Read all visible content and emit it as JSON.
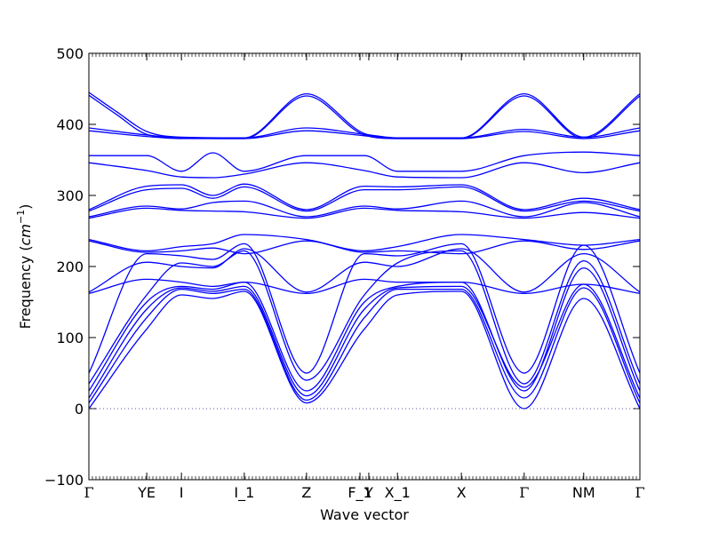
{
  "chart_data": {
    "type": "line",
    "title": "",
    "xlabel": "Wave vector",
    "ylabel_prefix": "Frequency (",
    "ylabel_unit_base": "cm",
    "ylabel_unit_exp": "−1",
    "ylabel_suffix": ")",
    "ylim": [
      -100,
      500
    ],
    "yticks": [
      -100,
      0,
      100,
      200,
      300,
      400,
      500
    ],
    "ytick_labels": [
      "−100",
      "0",
      "100",
      "200",
      "300",
      "400",
      "500"
    ],
    "grid": false,
    "band_color": "#0000ff",
    "zero_line_color": "#5555aa",
    "high_symmetry_points": [
      {
        "label": "Γ",
        "x": 0.0
      },
      {
        "label": "YE",
        "x": 0.105
      },
      {
        "label": "I",
        "x": 0.168
      },
      {
        "label": "I_1",
        "x": 0.282
      },
      {
        "label": "Z",
        "x": 0.395
      },
      {
        "label": "F_1",
        "x": 0.492
      },
      {
        "label": "Y",
        "x": 0.508
      },
      {
        "label": "X_1",
        "x": 0.56
      },
      {
        "label": "X",
        "x": 0.676
      },
      {
        "label": "Γ",
        "x": 0.79
      },
      {
        "label": "NM",
        "x": 0.898
      },
      {
        "label": "Γ",
        "x": 1.0
      }
    ],
    "series": [
      {
        "x": [
          0,
          0.05,
          0.105,
          0.168,
          0.282,
          0.395,
          0.5,
          0.56,
          0.676,
          0.79,
          0.898,
          1.0
        ],
        "values": [
          445,
          418,
          390,
          382,
          381,
          443,
          387,
          381,
          381,
          443,
          382,
          443
        ]
      },
      {
        "x": [
          0,
          0.05,
          0.105,
          0.168,
          0.282,
          0.395,
          0.5,
          0.56,
          0.676,
          0.79,
          0.898,
          1.0
        ],
        "values": [
          441,
          414,
          386,
          381,
          380,
          440,
          385,
          380,
          380,
          440,
          380,
          440
        ]
      },
      {
        "x": [
          0,
          0.105,
          0.168,
          0.225,
          0.282,
          0.395,
          0.5,
          0.56,
          0.676,
          0.79,
          0.898,
          1.0
        ],
        "values": [
          395,
          385,
          381,
          381,
          381,
          395,
          386,
          381,
          381,
          393,
          382,
          395
        ]
      },
      {
        "x": [
          0,
          0.105,
          0.168,
          0.225,
          0.282,
          0.395,
          0.5,
          0.56,
          0.676,
          0.79,
          0.898,
          1.0
        ],
        "values": [
          391,
          383,
          380,
          380,
          380,
          391,
          384,
          380,
          380,
          390,
          380,
          391
        ]
      },
      {
        "x": [
          0,
          0.105,
          0.168,
          0.225,
          0.282,
          0.395,
          0.5,
          0.56,
          0.676,
          0.79,
          0.898,
          1.0
        ],
        "values": [
          356,
          356,
          334,
          360,
          334,
          356,
          356,
          334,
          334,
          356,
          361,
          356
        ]
      },
      {
        "x": [
          0,
          0.105,
          0.168,
          0.225,
          0.282,
          0.395,
          0.5,
          0.56,
          0.676,
          0.79,
          0.898,
          1.0
        ],
        "values": [
          346,
          335,
          326,
          325,
          330,
          346,
          335,
          326,
          325,
          346,
          332,
          346
        ]
      },
      {
        "x": [
          0,
          0.105,
          0.168,
          0.225,
          0.282,
          0.395,
          0.5,
          0.56,
          0.676,
          0.79,
          0.898,
          1.0
        ],
        "values": [
          280,
          313,
          315,
          300,
          316,
          280,
          313,
          312,
          315,
          280,
          296,
          280
        ]
      },
      {
        "x": [
          0,
          0.105,
          0.168,
          0.225,
          0.282,
          0.395,
          0.5,
          0.56,
          0.676,
          0.79,
          0.898,
          1.0
        ],
        "values": [
          278,
          308,
          310,
          296,
          312,
          278,
          308,
          308,
          312,
          278,
          292,
          278
        ]
      },
      {
        "x": [
          0,
          0.105,
          0.168,
          0.225,
          0.282,
          0.395,
          0.5,
          0.56,
          0.676,
          0.79,
          0.898,
          1.0
        ],
        "values": [
          270,
          285,
          281,
          290,
          292,
          270,
          285,
          281,
          292,
          270,
          290,
          270
        ]
      },
      {
        "x": [
          0,
          0.105,
          0.168,
          0.225,
          0.282,
          0.395,
          0.5,
          0.56,
          0.676,
          0.79,
          0.898,
          1.0
        ],
        "values": [
          268,
          282,
          279,
          278,
          277,
          268,
          282,
          279,
          277,
          268,
          276,
          268
        ]
      },
      {
        "x": [
          0,
          0.105,
          0.168,
          0.225,
          0.282,
          0.395,
          0.5,
          0.56,
          0.676,
          0.79,
          0.898,
          1.0
        ],
        "values": [
          238,
          222,
          228,
          232,
          245,
          238,
          222,
          228,
          245,
          238,
          230,
          238
        ]
      },
      {
        "x": [
          0,
          0.105,
          0.168,
          0.225,
          0.282,
          0.395,
          0.5,
          0.56,
          0.676,
          0.79,
          0.898,
          1.0
        ],
        "values": [
          236,
          220,
          222,
          226,
          218,
          236,
          220,
          222,
          218,
          236,
          224,
          236
        ]
      },
      {
        "x": [
          0,
          0.105,
          0.168,
          0.225,
          0.282,
          0.395,
          0.5,
          0.56,
          0.676,
          0.79,
          0.898,
          1.0
        ],
        "values": [
          164,
          206,
          200,
          198,
          225,
          164,
          206,
          200,
          225,
          164,
          218,
          164
        ]
      },
      {
        "x": [
          0,
          0.105,
          0.168,
          0.225,
          0.282,
          0.395,
          0.5,
          0.56,
          0.676,
          0.79,
          0.898,
          1.0
        ],
        "values": [
          162,
          182,
          178,
          172,
          178,
          162,
          182,
          178,
          178,
          162,
          175,
          162
        ]
      },
      {
        "x": [
          0,
          0.105,
          0.168,
          0.225,
          0.282,
          0.395,
          0.5,
          0.56,
          0.676,
          0.79,
          0.898,
          1.0
        ],
        "values": [
          50,
          218,
          215,
          210,
          232,
          50,
          218,
          215,
          232,
          50,
          230,
          50
        ]
      },
      {
        "x": [
          0,
          0.105,
          0.168,
          0.225,
          0.282,
          0.395,
          0.5,
          0.56,
          0.676,
          0.79,
          0.898,
          1.0
        ],
        "values": [
          35,
          160,
          205,
          200,
          222,
          40,
          160,
          205,
          222,
          35,
          208,
          35
        ]
      },
      {
        "x": [
          0,
          0.105,
          0.168,
          0.225,
          0.282,
          0.395,
          0.5,
          0.56,
          0.676,
          0.79,
          0.898,
          1.0
        ],
        "values": [
          25,
          150,
          172,
          168,
          178,
          25,
          150,
          172,
          178,
          25,
          198,
          25
        ]
      },
      {
        "x": [
          0,
          0.105,
          0.168,
          0.225,
          0.282,
          0.395,
          0.5,
          0.56,
          0.676,
          0.79,
          0.898,
          1.0
        ],
        "values": [
          15,
          140,
          170,
          165,
          172,
          18,
          140,
          170,
          172,
          30,
          175,
          15
        ]
      },
      {
        "x": [
          0,
          0.105,
          0.168,
          0.225,
          0.282,
          0.395,
          0.5,
          0.56,
          0.676,
          0.79,
          0.898,
          1.0
        ],
        "values": [
          8,
          128,
          168,
          162,
          168,
          12,
          128,
          168,
          168,
          15,
          170,
          8
        ]
      },
      {
        "x": [
          0,
          0.105,
          0.168,
          0.225,
          0.282,
          0.395,
          0.5,
          0.56,
          0.676,
          0.79,
          0.898,
          1.0
        ],
        "values": [
          0,
          112,
          160,
          155,
          165,
          8,
          112,
          160,
          165,
          0,
          155,
          0
        ]
      }
    ]
  }
}
